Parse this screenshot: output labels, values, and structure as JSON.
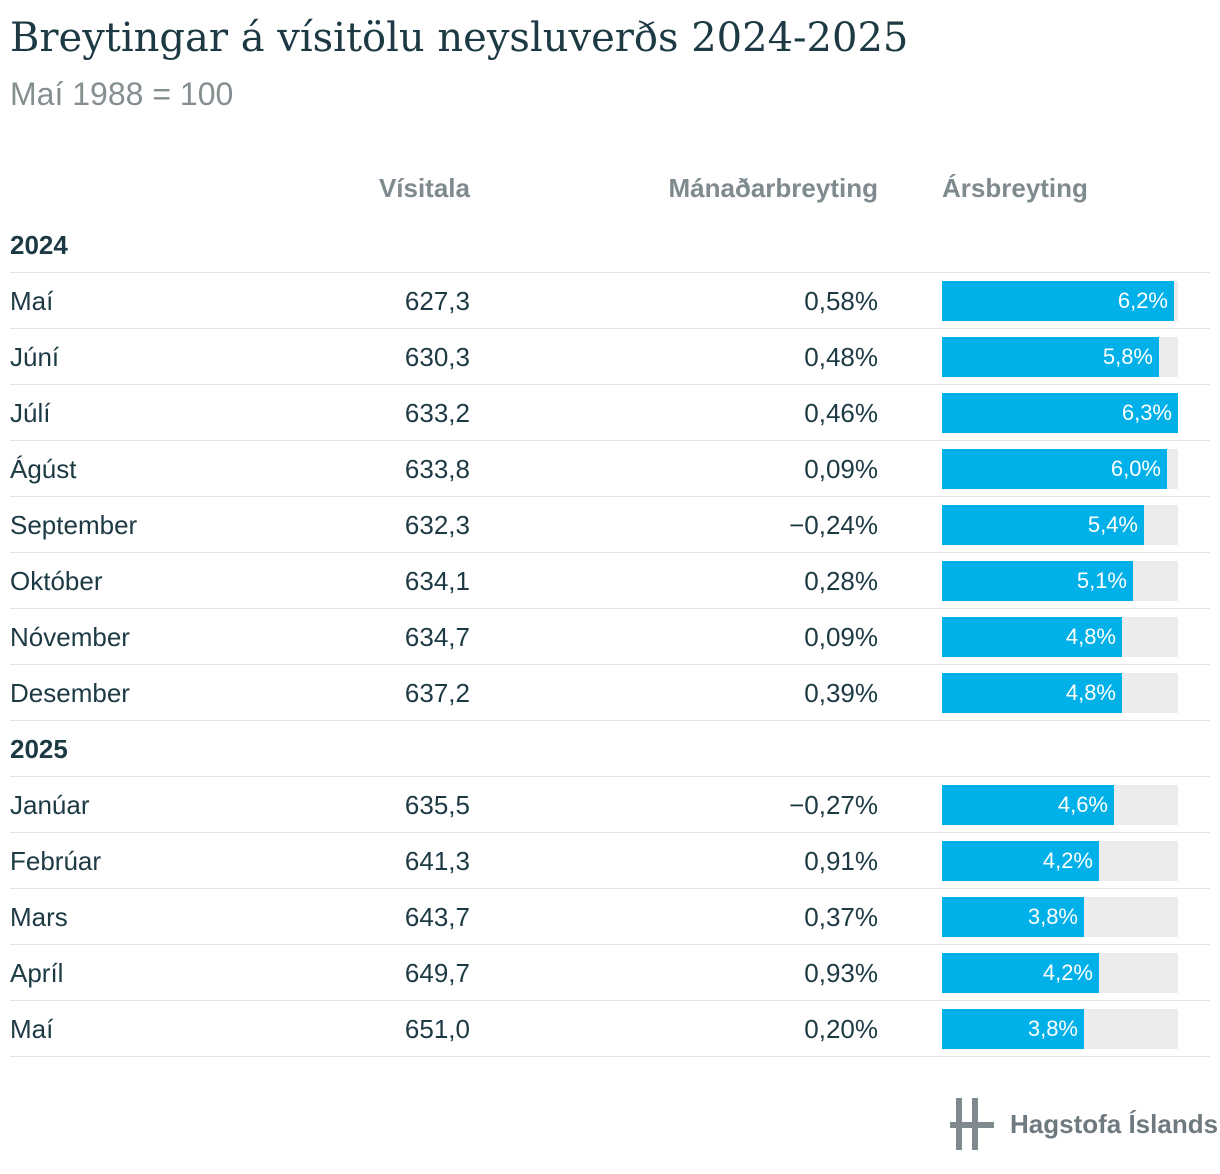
{
  "title": "Breytingar á vísitölu neysluverðs 2024-2025",
  "subtitle": "Maí 1988 = 100",
  "columns": {
    "index": "Vísitala",
    "month_change": "Mánaðarbreyting",
    "year_change": "Ársbreyting"
  },
  "colors": {
    "bar": "#00b0e8",
    "track": "#ececec",
    "text": "#1d3a44",
    "muted": "#858e91"
  },
  "logo": {
    "text": "Hagstofa Íslands",
    "icon": "hagstofa-logo-icon"
  },
  "chart_data": {
    "type": "table",
    "year_change_axis_max": 6.3,
    "groups": [
      {
        "year": "2024",
        "rows": [
          {
            "month": "Maí",
            "index": "627,3",
            "month_change": "0,58%",
            "year_change": 6.2,
            "year_change_label": "6,2%"
          },
          {
            "month": "Júní",
            "index": "630,3",
            "month_change": "0,48%",
            "year_change": 5.8,
            "year_change_label": "5,8%"
          },
          {
            "month": "Júlí",
            "index": "633,2",
            "month_change": "0,46%",
            "year_change": 6.3,
            "year_change_label": "6,3%"
          },
          {
            "month": "Ágúst",
            "index": "633,8",
            "month_change": "0,09%",
            "year_change": 6.0,
            "year_change_label": "6,0%"
          },
          {
            "month": "September",
            "index": "632,3",
            "month_change": "−0,24%",
            "year_change": 5.4,
            "year_change_label": "5,4%"
          },
          {
            "month": "Október",
            "index": "634,1",
            "month_change": "0,28%",
            "year_change": 5.1,
            "year_change_label": "5,1%"
          },
          {
            "month": "Nóvember",
            "index": "634,7",
            "month_change": "0,09%",
            "year_change": 4.8,
            "year_change_label": "4,8%"
          },
          {
            "month": "Desember",
            "index": "637,2",
            "month_change": "0,39%",
            "year_change": 4.8,
            "year_change_label": "4,8%"
          }
        ]
      },
      {
        "year": "2025",
        "rows": [
          {
            "month": "Janúar",
            "index": "635,5",
            "month_change": "−0,27%",
            "year_change": 4.6,
            "year_change_label": "4,6%"
          },
          {
            "month": "Febrúar",
            "index": "641,3",
            "month_change": "0,91%",
            "year_change": 4.2,
            "year_change_label": "4,2%"
          },
          {
            "month": "Mars",
            "index": "643,7",
            "month_change": "0,37%",
            "year_change": 3.8,
            "year_change_label": "3,8%"
          },
          {
            "month": "Apríl",
            "index": "649,7",
            "month_change": "0,93%",
            "year_change": 4.2,
            "year_change_label": "4,2%"
          },
          {
            "month": "Maí",
            "index": "651,0",
            "month_change": "0,20%",
            "year_change": 3.8,
            "year_change_label": "3,8%"
          }
        ]
      }
    ]
  }
}
